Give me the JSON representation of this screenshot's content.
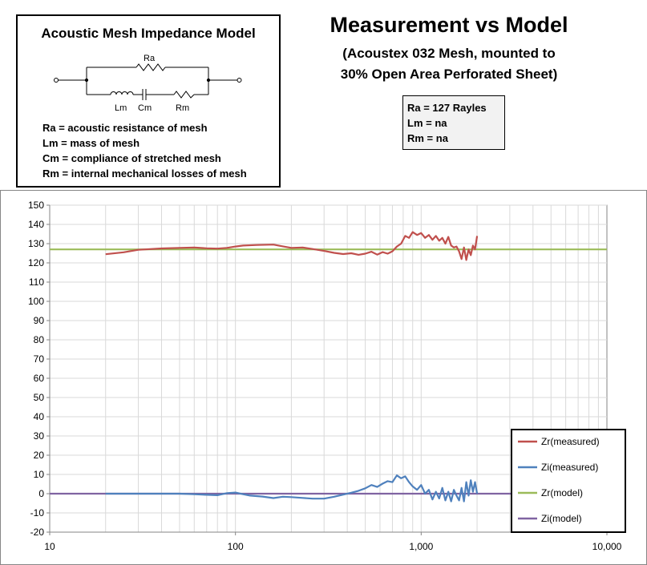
{
  "model_box": {
    "title": "Acoustic Mesh Impedance Model",
    "circuit_labels": {
      "ra": "Ra",
      "lm": "Lm",
      "cm": "Cm",
      "rm": "Rm"
    },
    "definitions": [
      "Ra = acoustic resistance of mesh",
      "Lm = mass of mesh",
      "Cm = compliance of stretched mesh",
      "Rm = internal mechanical losses of mesh"
    ]
  },
  "header": {
    "title": "Measurement vs Model",
    "subtitle_line1": "(Acoustex 032 Mesh, mounted to",
    "subtitle_line2": "30% Open Area Perforated Sheet)"
  },
  "params": {
    "ra": "Ra = 127 Rayles",
    "lm": "Lm = na",
    "rm": "Rm = na"
  },
  "chart_data": {
    "type": "line",
    "x_scale": "log",
    "xlim": [
      10,
      10000
    ],
    "ylim": [
      -20,
      150
    ],
    "x_ticks": [
      10,
      100,
      1000,
      10000
    ],
    "x_tick_labels": [
      "10",
      "100",
      "1,000",
      "10,000"
    ],
    "y_ticks": [
      -20,
      -10,
      0,
      10,
      20,
      30,
      40,
      50,
      60,
      70,
      80,
      90,
      100,
      110,
      120,
      130,
      140,
      150
    ],
    "grid": true,
    "legend_position": "bottom-right",
    "series": [
      {
        "name": "Zr(measured)",
        "color": "#c0504d",
        "x": [
          20,
          25,
          30,
          40,
          50,
          60,
          70,
          80,
          90,
          100,
          110,
          130,
          160,
          180,
          200,
          230,
          260,
          300,
          340,
          380,
          420,
          460,
          500,
          540,
          580,
          620,
          660,
          700,
          740,
          780,
          820,
          860,
          900,
          950,
          1000,
          1050,
          1100,
          1150,
          1200,
          1250,
          1300,
          1350,
          1400,
          1450,
          1500,
          1550,
          1600,
          1650,
          1700,
          1750,
          1800,
          1850,
          1900,
          1950,
          2000
        ],
        "y": [
          124.5,
          125.5,
          126.8,
          127.5,
          127.8,
          128,
          127.6,
          127.4,
          127.8,
          128.5,
          129,
          129.3,
          129.5,
          128.6,
          127.8,
          128,
          127.2,
          126.2,
          125.2,
          124.6,
          125,
          124.2,
          124.8,
          125.8,
          124.3,
          125.6,
          124.8,
          126,
          128.5,
          130,
          134,
          133,
          136,
          134.5,
          135.5,
          133,
          134.5,
          132,
          134,
          131.5,
          133,
          130,
          133.5,
          129,
          128,
          128.5,
          126,
          122,
          128,
          121.5,
          127,
          124,
          129,
          127,
          134
        ]
      },
      {
        "name": "Zi(measured)",
        "color": "#4f81bd",
        "x": [
          20,
          30,
          40,
          50,
          60,
          70,
          80,
          90,
          100,
          110,
          120,
          140,
          160,
          180,
          200,
          230,
          260,
          300,
          340,
          380,
          420,
          460,
          500,
          540,
          580,
          620,
          660,
          700,
          740,
          780,
          820,
          860,
          900,
          950,
          1000,
          1050,
          1100,
          1150,
          1200,
          1250,
          1300,
          1350,
          1400,
          1450,
          1500,
          1550,
          1600,
          1650,
          1700,
          1750,
          1800,
          1850,
          1900,
          1950,
          2000
        ],
        "y": [
          0,
          0,
          0,
          0,
          -0.3,
          -0.6,
          -0.8,
          0.3,
          0.6,
          -0.3,
          -1,
          -1.5,
          -2.3,
          -1.6,
          -1.8,
          -2.2,
          -2.6,
          -2.6,
          -1.6,
          -0.5,
          0.5,
          1.5,
          2.8,
          4.5,
          3.5,
          5.2,
          6.5,
          6,
          9.5,
          8,
          9,
          6,
          3.8,
          2,
          4.5,
          0,
          2,
          -3,
          1,
          -2.5,
          3,
          -3.5,
          1,
          -4,
          2,
          -1,
          -3.5,
          3,
          -4,
          6,
          -1,
          7,
          1,
          6,
          0
        ]
      },
      {
        "name": "Zr(model)",
        "color": "#9bbb59",
        "x": [
          10,
          10000
        ],
        "y": [
          127,
          127
        ]
      },
      {
        "name": "Zi(model)",
        "color": "#8064a2",
        "x": [
          10,
          10000
        ],
        "y": [
          0,
          0
        ]
      }
    ]
  }
}
